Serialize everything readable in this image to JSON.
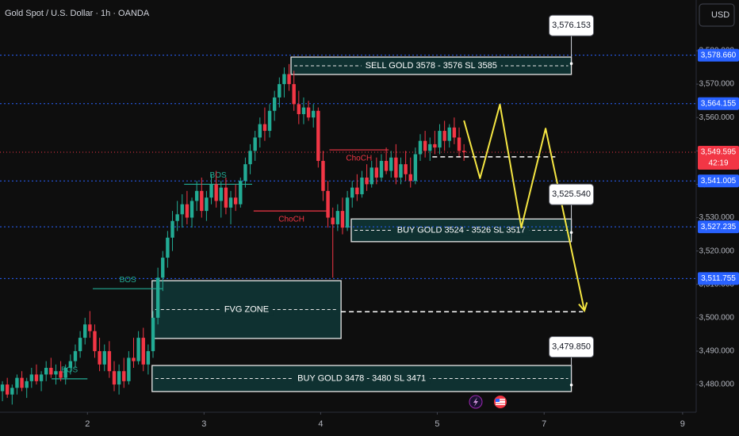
{
  "chart_data": {
    "type": "candlestick",
    "title": "Gold Spot / U.S. Dollar · 1h · OANDA",
    "currency": "USD",
    "colors": {
      "up": "#22ab94",
      "down": "#f23645"
    },
    "xlim": [
      0,
      141.5
    ],
    "xticks": [
      {
        "value": 18,
        "label": "2"
      },
      {
        "value": 42,
        "label": "3"
      },
      {
        "value": 66,
        "label": "4"
      },
      {
        "value": 90,
        "label": "5"
      },
      {
        "value": 112,
        "label": "7"
      },
      {
        "value": 140.5,
        "label": "9"
      }
    ],
    "ylim": [
      3471.7,
      3595.2
    ],
    "yticks": [
      {
        "value": 3480,
        "label": "3,480.000"
      },
      {
        "value": 3490,
        "label": "3,490.000"
      },
      {
        "value": 3500,
        "label": "3,500.000"
      },
      {
        "value": 3510,
        "label": "3,510.000"
      },
      {
        "value": 3520,
        "label": "3,520.000"
      },
      {
        "value": 3530,
        "label": "3,530.000"
      },
      {
        "value": 3540,
        "label": "3,540.000"
      },
      {
        "value": 3550,
        "label": "3,550.000"
      },
      {
        "value": 3560,
        "label": "3,560.000"
      },
      {
        "value": 3570,
        "label": "3,570.000"
      },
      {
        "value": 3580,
        "label": "3,580.000"
      }
    ],
    "candles": [
      [
        3478,
        3481,
        3475,
        3480
      ],
      [
        3480,
        3482,
        3476,
        3477
      ],
      [
        3477,
        3480,
        3474,
        3479
      ],
      [
        3479,
        3483,
        3477,
        3482
      ],
      [
        3482,
        3484,
        3478,
        3479
      ],
      [
        3479,
        3482,
        3476,
        3481
      ],
      [
        3481,
        3485,
        3479,
        3483
      ],
      [
        3483,
        3486,
        3480,
        3481
      ],
      [
        3481,
        3484,
        3478,
        3483
      ],
      [
        3483,
        3487,
        3481,
        3485
      ],
      [
        3485,
        3488,
        3482,
        3483
      ],
      [
        3483,
        3486,
        3480,
        3484
      ],
      [
        3484,
        3487,
        3481,
        3482
      ],
      [
        3482,
        3486,
        3480,
        3485
      ],
      [
        3485,
        3489,
        3483,
        3487
      ],
      [
        3487,
        3492,
        3485,
        3490
      ],
      [
        3490,
        3496,
        3488,
        3494
      ],
      [
        3494,
        3500,
        3492,
        3498
      ],
      [
        3498,
        3502,
        3494,
        3496
      ],
      [
        3496,
        3498,
        3488,
        3490
      ],
      [
        3490,
        3494,
        3484,
        3486
      ],
      [
        3486,
        3492,
        3484,
        3490
      ],
      [
        3490,
        3493,
        3482,
        3484
      ],
      [
        3484,
        3487,
        3478,
        3480
      ],
      [
        3480,
        3486,
        3477,
        3484
      ],
      [
        3484,
        3488,
        3479,
        3481
      ],
      [
        3481,
        3490,
        3480,
        3488
      ],
      [
        3488,
        3494,
        3485,
        3487
      ],
      [
        3487,
        3496,
        3486,
        3494
      ],
      [
        3494,
        3497,
        3484,
        3486
      ],
      [
        3486,
        3492,
        3483,
        3490
      ],
      [
        3490,
        3502,
        3488,
        3500
      ],
      [
        3500,
        3515,
        3498,
        3512
      ],
      [
        3512,
        3520,
        3508,
        3518
      ],
      [
        3518,
        3526,
        3515,
        3524
      ],
      [
        3524,
        3532,
        3520,
        3529
      ],
      [
        3529,
        3535,
        3526,
        3531
      ],
      [
        3531,
        3537,
        3527,
        3534
      ],
      [
        3534,
        3538,
        3528,
        3530
      ],
      [
        3530,
        3536,
        3527,
        3535
      ],
      [
        3535,
        3541,
        3532,
        3538
      ],
      [
        3538,
        3542,
        3530,
        3532
      ],
      [
        3532,
        3538,
        3529,
        3536
      ],
      [
        3536,
        3543,
        3534,
        3540
      ],
      [
        3540,
        3544,
        3533,
        3535
      ],
      [
        3535,
        3541,
        3530,
        3539
      ],
      [
        3539,
        3542,
        3531,
        3533
      ],
      [
        3533,
        3538,
        3528,
        3536
      ],
      [
        3536,
        3540,
        3532,
        3534
      ],
      [
        3534,
        3542,
        3533,
        3541
      ],
      [
        3541,
        3548,
        3539,
        3546
      ],
      [
        3546,
        3552,
        3543,
        3550
      ],
      [
        3550,
        3556,
        3547,
        3554
      ],
      [
        3554,
        3560,
        3551,
        3558
      ],
      [
        3558,
        3563,
        3553,
        3556
      ],
      [
        3556,
        3564,
        3554,
        3562
      ],
      [
        3562,
        3568,
        3559,
        3566
      ],
      [
        3566,
        3572,
        3563,
        3570
      ],
      [
        3570,
        3575,
        3566,
        3573
      ],
      [
        3573,
        3576,
        3568,
        3570
      ],
      [
        3570,
        3574,
        3562,
        3564
      ],
      [
        3564,
        3568,
        3558,
        3561
      ],
      [
        3561,
        3566,
        3558,
        3563
      ],
      [
        3563,
        3565,
        3559,
        3560
      ],
      [
        3560,
        3564,
        3557,
        3562
      ],
      [
        3562,
        3563,
        3545,
        3547
      ],
      [
        3547,
        3550,
        3535,
        3538
      ],
      [
        3538,
        3541,
        3527,
        3530
      ],
      [
        3530,
        3533,
        3512,
        3528
      ],
      [
        3528,
        3534,
        3526,
        3532
      ],
      [
        3532,
        3536,
        3525,
        3527
      ],
      [
        3527,
        3538,
        3526,
        3536
      ],
      [
        3536,
        3541,
        3533,
        3539
      ],
      [
        3539,
        3543,
        3535,
        3537
      ],
      [
        3537,
        3544,
        3536,
        3542
      ],
      [
        3542,
        3546,
        3538,
        3540
      ],
      [
        3540,
        3547,
        3539,
        3545
      ],
      [
        3545,
        3548,
        3540,
        3542
      ],
      [
        3542,
        3549,
        3541,
        3547
      ],
      [
        3547,
        3551,
        3543,
        3544
      ],
      [
        3544,
        3550,
        3542,
        3548
      ],
      [
        3548,
        3552,
        3540,
        3542
      ],
      [
        3542,
        3548,
        3540,
        3546
      ],
      [
        3546,
        3550,
        3541,
        3543
      ],
      [
        3543,
        3548,
        3539,
        3541
      ],
      [
        3541,
        3551,
        3540,
        3549
      ],
      [
        3549,
        3555,
        3547,
        3553
      ],
      [
        3553,
        3556,
        3548,
        3550
      ],
      [
        3550,
        3554,
        3547,
        3552
      ],
      [
        3552,
        3556,
        3549,
        3551
      ],
      [
        3551,
        3558,
        3549,
        3556
      ],
      [
        3556,
        3559,
        3550,
        3553
      ],
      [
        3553,
        3558,
        3551,
        3557
      ],
      [
        3557,
        3560,
        3552,
        3554
      ],
      [
        3554,
        3557,
        3548,
        3550
      ],
      [
        3550,
        3552,
        3547,
        3549.6
      ]
    ],
    "price_lines": [
      {
        "value": 3578.66,
        "label": "3,578.660"
      },
      {
        "value": 3564.155,
        "label": "3,564.155"
      },
      {
        "value": 3541.005,
        "label": "3,541.005"
      },
      {
        "value": 3527.235,
        "label": "3,527.235"
      },
      {
        "value": 3511.755,
        "label": "3,511.755"
      }
    ],
    "price_line_color": "#2962ff",
    "current_price": {
      "value": 3549.595,
      "label": "3,549.595",
      "countdown": "42:19",
      "color": "#f23645"
    },
    "zones": [
      {
        "label": "SELL GOLD 3578 - 3576 SL 3585",
        "x": [
          59.9,
          117.6
        ],
        "y": [
          3572.9,
          3578.1
        ]
      },
      {
        "label": "BUY GOLD 3524 - 3526 SL 3517",
        "x": [
          72.3,
          117.6
        ],
        "y": [
          3522.8,
          3529.6
        ]
      },
      {
        "label": "FVG ZONE",
        "x": [
          31.3,
          70.2
        ],
        "y": [
          3493.8,
          3511.1
        ]
      },
      {
        "label": "BUY GOLD 3478 - 3480 SL 3471",
        "x": [
          31.3,
          117.6
        ],
        "y": [
          3477.9,
          3485.7
        ]
      }
    ],
    "structure": [
      {
        "label": "BOS",
        "level": 3481.7,
        "x": [
          10.6,
          18
        ],
        "color": "#22ab94",
        "side": "above"
      },
      {
        "label": "BOS",
        "level": 3508.7,
        "x": [
          19.1,
          33.5
        ],
        "color": "#22ab94",
        "side": "above"
      },
      {
        "label": "BOS",
        "level": 3540,
        "x": [
          37.9,
          51.9
        ],
        "color": "#22ab94",
        "side": "above"
      },
      {
        "label": "ChoCH",
        "level": 3532,
        "x": [
          52.2,
          67.8
        ],
        "color": "#f23645",
        "side": "below"
      },
      {
        "label": "ChoCH",
        "level": 3550.3,
        "x": [
          67.8,
          80
        ],
        "color": "#f23645",
        "side": "below"
      }
    ],
    "dashed_lines": [
      {
        "level": 3548.2,
        "x": [
          89,
          114.3
        ]
      },
      {
        "level": 3501.8,
        "x": [
          70.2,
          120
        ]
      }
    ],
    "projection": {
      "x": [
        95.5,
        98.8,
        102.9,
        107.3,
        112.3,
        120.3
      ],
      "y": [
        3559.1,
        3541.8,
        3563.9,
        3527,
        3556.7,
        3502.1
      ],
      "color": "#f5e642"
    },
    "callouts": [
      {
        "value": 3576.153,
        "label": "3,576.153",
        "x": 117.6
      },
      {
        "value": 3525.54,
        "label": "3,525.540",
        "x": 117.6
      },
      {
        "value": 3479.85,
        "label": "3,479.850",
        "x": 117.6
      }
    ]
  }
}
